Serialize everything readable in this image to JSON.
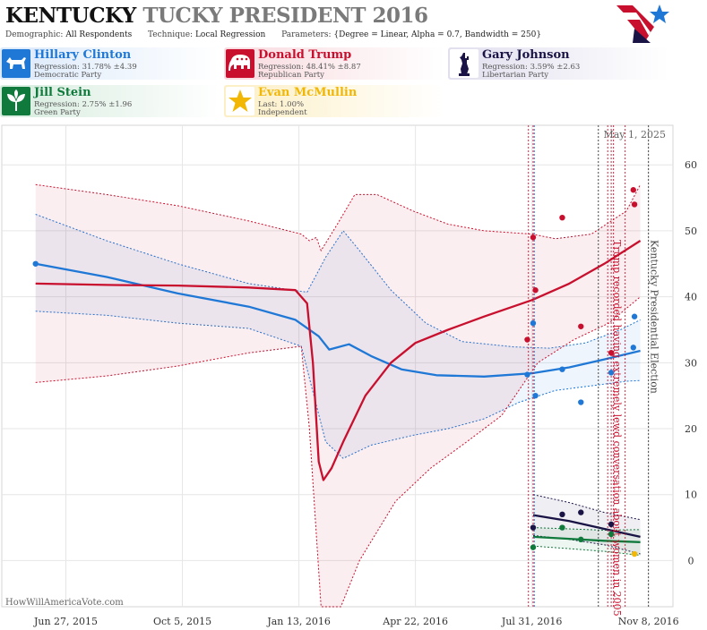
{
  "header": {
    "title_state": "KENTUCKY",
    "title_rest": " TUCKY PRESIDENT 2016",
    "demographic_label": "Demographic:",
    "demographic_value": "All Respondents",
    "technique_label": "Technique:",
    "technique_value": "Local Regression",
    "parameters_label": "Parameters:",
    "parameters_value": "{Degree = Linear, Alpha = 0.7, Bandwidth = 250}"
  },
  "candidates": [
    {
      "name": "Hillary Clinton",
      "stat": "Regression: 31.78% ±4.39",
      "party": "Democratic Party",
      "color": "#1f78d6",
      "icon": "donkey-icon"
    },
    {
      "name": "Donald Trump",
      "stat": "Regression: 48.41% ±8.87",
      "party": "Republican Party",
      "color": "#c8102e",
      "icon": "elephant-icon"
    },
    {
      "name": "Gary Johnson",
      "stat": "Regression: 3.59% ±2.63",
      "party": "Libertarian Party",
      "color": "#1a1446",
      "icon": "statue-of-liberty-icon"
    },
    {
      "name": "Jill Stein",
      "stat": "Regression: 2.75% ±1.96",
      "party": "Green Party",
      "color": "#0f7a3c",
      "icon": "leaf-icon"
    },
    {
      "name": "Evan McMullin",
      "stat": "Last: 1.00%",
      "party": "Independent",
      "color": "#f2b705",
      "icon": "star-icon"
    }
  ],
  "watermark": "HowWillAmericaVote.com",
  "chart_data": {
    "type": "line",
    "date_label": "May 1, 2025",
    "x_ticks": [
      "Jun 27, 2015",
      "Oct 5, 2015",
      "Jan 13, 2016",
      "Apr 22, 2016",
      "Jul 31, 2016",
      "Nov 8, 2016"
    ],
    "xlim": [
      "2015-05-03",
      "2016-11-29"
    ],
    "ylim": [
      -7,
      66
    ],
    "y_ticks": [
      0,
      10,
      20,
      30,
      40,
      50,
      60
    ],
    "grid": true,
    "annotations": [
      {
        "x": "2016-10-07",
        "text": "Trump recorded having extremely lewd conversation about women in 2005",
        "color": "#c8102e"
      },
      {
        "x": "2016-11-08",
        "text": "Kentucky Presidential Election",
        "color": "#444444"
      }
    ],
    "event_lines": [
      {
        "x": "2016-07-28",
        "color": "#c8102e"
      },
      {
        "x": "2016-08-01",
        "color": "#c8102e"
      },
      {
        "x": "2016-08-02",
        "color": "#1f78d6"
      },
      {
        "x": "2016-09-26",
        "color": "#333333"
      },
      {
        "x": "2016-10-04",
        "color": "#c8102e"
      },
      {
        "x": "2016-10-07",
        "color": "#c8102e"
      },
      {
        "x": "2016-10-09",
        "color": "#c8102e"
      },
      {
        "x": "2016-10-19",
        "color": "#c8102e"
      },
      {
        "x": "2016-11-08",
        "color": "#333333"
      }
    ],
    "series": [
      {
        "name": "Hillary Clinton",
        "color": "#1f78d6",
        "line": [
          [
            "2015-06-01",
            45
          ],
          [
            "2015-08-01",
            43
          ],
          [
            "2015-10-01",
            40.5
          ],
          [
            "2015-12-01",
            38.5
          ],
          [
            "2016-01-10",
            36.5
          ],
          [
            "2016-01-30",
            34
          ],
          [
            "2016-02-08",
            32
          ],
          [
            "2016-02-25",
            32.8
          ],
          [
            "2016-03-15",
            31
          ],
          [
            "2016-04-10",
            29
          ],
          [
            "2016-05-10",
            28.1
          ],
          [
            "2016-06-20",
            27.9
          ],
          [
            "2016-07-31",
            28.4
          ],
          [
            "2016-09-01",
            29.3
          ],
          [
            "2016-10-01",
            30.5
          ],
          [
            "2016-11-01",
            31.8
          ]
        ],
        "upper": [
          [
            "2015-06-01",
            52.5
          ],
          [
            "2015-08-01",
            48.5
          ],
          [
            "2015-10-01",
            45
          ],
          [
            "2015-12-01",
            42
          ],
          [
            "2016-01-20",
            40.7
          ],
          [
            "2016-02-05",
            46
          ],
          [
            "2016-02-20",
            50
          ],
          [
            "2016-03-05",
            47
          ],
          [
            "2016-04-01",
            41
          ],
          [
            "2016-05-01",
            36
          ],
          [
            "2016-06-01",
            33.2
          ],
          [
            "2016-07-15",
            32.4
          ],
          [
            "2016-08-15",
            32.2
          ],
          [
            "2016-09-15",
            33
          ],
          [
            "2016-10-15",
            35
          ],
          [
            "2016-11-01",
            36.5
          ]
        ],
        "lower": [
          [
            "2015-06-01",
            37.8
          ],
          [
            "2015-08-01",
            37.2
          ],
          [
            "2015-10-01",
            36
          ],
          [
            "2015-12-01",
            35.2
          ],
          [
            "2016-01-15",
            32.5
          ],
          [
            "2016-02-05",
            18
          ],
          [
            "2016-02-20",
            15.5
          ],
          [
            "2016-03-15",
            17.5
          ],
          [
            "2016-04-20",
            19
          ],
          [
            "2016-05-20",
            20
          ],
          [
            "2016-06-20",
            21.5
          ],
          [
            "2016-07-20",
            24
          ],
          [
            "2016-08-20",
            25.8
          ],
          [
            "2016-09-20",
            26.5
          ],
          [
            "2016-10-20",
            27.2
          ],
          [
            "2016-11-01",
            27.3
          ]
        ],
        "points": [
          [
            "2015-06-01",
            45
          ],
          [
            "2016-07-27",
            28.2
          ],
          [
            "2016-08-01",
            36
          ],
          [
            "2016-08-03",
            25
          ],
          [
            "2016-08-26",
            29
          ],
          [
            "2016-09-11",
            24
          ],
          [
            "2016-10-07",
            28.5
          ],
          [
            "2016-10-26",
            32.3
          ],
          [
            "2016-10-27",
            37
          ]
        ]
      },
      {
        "name": "Donald Trump",
        "color": "#c8102e",
        "line": [
          [
            "2015-06-01",
            42
          ],
          [
            "2015-08-01",
            41.8
          ],
          [
            "2015-10-01",
            41.7
          ],
          [
            "2015-12-01",
            41.4
          ],
          [
            "2016-01-10",
            41
          ],
          [
            "2016-01-20",
            39
          ],
          [
            "2016-01-25",
            30
          ],
          [
            "2016-01-30",
            15
          ],
          [
            "2016-02-03",
            12.2
          ],
          [
            "2016-02-10",
            14
          ],
          [
            "2016-02-20",
            18
          ],
          [
            "2016-03-10",
            25
          ],
          [
            "2016-04-01",
            30
          ],
          [
            "2016-04-22",
            33
          ],
          [
            "2016-05-20",
            35
          ],
          [
            "2016-06-20",
            37
          ],
          [
            "2016-07-31",
            39.5
          ],
          [
            "2016-09-01",
            42
          ],
          [
            "2016-10-01",
            45
          ],
          [
            "2016-11-01",
            48.5
          ]
        ],
        "upper": [
          [
            "2015-06-01",
            57
          ],
          [
            "2015-08-01",
            55.5
          ],
          [
            "2015-10-01",
            53.8
          ],
          [
            "2015-12-01",
            51.5
          ],
          [
            "2016-01-15",
            49.5
          ],
          [
            "2016-01-22",
            48.5
          ],
          [
            "2016-01-28",
            49
          ],
          [
            "2016-02-01",
            47
          ],
          [
            "2016-02-15",
            51
          ],
          [
            "2016-03-01",
            55.5
          ],
          [
            "2016-03-20",
            55.5
          ],
          [
            "2016-04-20",
            53
          ],
          [
            "2016-05-20",
            51
          ],
          [
            "2016-06-20",
            50
          ],
          [
            "2016-07-31",
            49.5
          ],
          [
            "2016-08-20",
            48.8
          ],
          [
            "2016-09-20",
            49.5
          ],
          [
            "2016-10-20",
            53
          ],
          [
            "2016-11-01",
            57
          ]
        ],
        "lower": [
          [
            "2015-06-01",
            27
          ],
          [
            "2015-08-01",
            28
          ],
          [
            "2015-10-01",
            29.5
          ],
          [
            "2015-12-01",
            31.5
          ],
          [
            "2016-01-15",
            32.5
          ],
          [
            "2016-01-22",
            20
          ],
          [
            "2016-02-01",
            -7
          ],
          [
            "2016-02-18",
            -7
          ],
          [
            "2016-03-05",
            0
          ],
          [
            "2016-04-05",
            9
          ],
          [
            "2016-05-05",
            14
          ],
          [
            "2016-06-05",
            18
          ],
          [
            "2016-07-05",
            22
          ],
          [
            "2016-08-05",
            30
          ],
          [
            "2016-09-05",
            33.5
          ],
          [
            "2016-10-05",
            36
          ],
          [
            "2016-11-01",
            40
          ]
        ],
        "points": [
          [
            "2016-07-27",
            33.5
          ],
          [
            "2016-08-01",
            49
          ],
          [
            "2016-08-03",
            41
          ],
          [
            "2016-08-26",
            52
          ],
          [
            "2016-09-11",
            35.5
          ],
          [
            "2016-10-07",
            31.5
          ],
          [
            "2016-10-26",
            56.2
          ],
          [
            "2016-10-27",
            54
          ]
        ]
      },
      {
        "name": "Gary Johnson",
        "color": "#1a1446",
        "line": [
          [
            "2016-08-01",
            6.9
          ],
          [
            "2016-09-01",
            6
          ],
          [
            "2016-10-01",
            4.8
          ],
          [
            "2016-11-01",
            3.6
          ]
        ],
        "upper": [
          [
            "2016-08-01",
            10
          ],
          [
            "2016-09-01",
            8.8
          ],
          [
            "2016-10-01",
            7.3
          ],
          [
            "2016-11-01",
            6.2
          ]
        ],
        "lower": [
          [
            "2016-08-01",
            3.8
          ],
          [
            "2016-09-01",
            3.2
          ],
          [
            "2016-10-01",
            2.4
          ],
          [
            "2016-11-01",
            1
          ]
        ],
        "points": [
          [
            "2016-08-01",
            5
          ],
          [
            "2016-08-26",
            7
          ],
          [
            "2016-09-11",
            7.3
          ],
          [
            "2016-10-07",
            5.5
          ]
        ]
      },
      {
        "name": "Jill Stein",
        "color": "#0f7a3c",
        "line": [
          [
            "2016-08-01",
            3.6
          ],
          [
            "2016-09-01",
            3.3
          ],
          [
            "2016-10-01",
            3
          ],
          [
            "2016-11-01",
            2.8
          ]
        ],
        "upper": [
          [
            "2016-08-01",
            5
          ],
          [
            "2016-09-01",
            4.8
          ],
          [
            "2016-10-01",
            4.6
          ],
          [
            "2016-11-01",
            4.7
          ]
        ],
        "lower": [
          [
            "2016-08-01",
            2.2
          ],
          [
            "2016-09-01",
            1.8
          ],
          [
            "2016-10-01",
            1.4
          ],
          [
            "2016-11-01",
            0.8
          ]
        ],
        "points": [
          [
            "2016-08-01",
            2
          ],
          [
            "2016-08-26",
            5
          ],
          [
            "2016-09-11",
            3.2
          ],
          [
            "2016-10-07",
            4
          ]
        ]
      },
      {
        "name": "Evan McMullin",
        "color": "#f2b705",
        "line": [],
        "upper": [],
        "lower": [],
        "points": [
          [
            "2016-10-27",
            1
          ]
        ]
      }
    ]
  }
}
